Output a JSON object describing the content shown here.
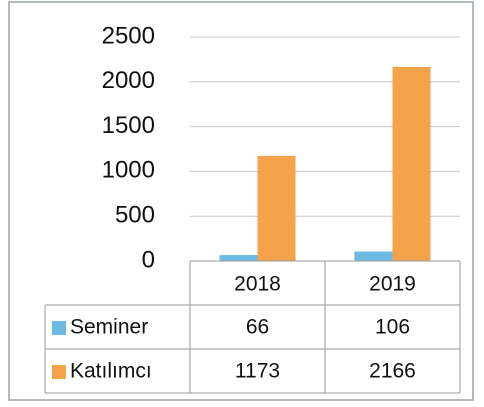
{
  "chart_data": {
    "type": "bar",
    "categories": [
      "2018",
      "2019"
    ],
    "series": [
      {
        "name": "Seminer",
        "color": "#6cb9e2",
        "values": [
          66,
          106
        ]
      },
      {
        "name": "Katılımcı",
        "color": "#f5a24d",
        "values": [
          1173,
          2166
        ]
      }
    ],
    "ylim": [
      0,
      2500
    ],
    "yticks": [
      0,
      500,
      1000,
      1500,
      2000,
      2500
    ],
    "grid": true,
    "data_table": true
  }
}
